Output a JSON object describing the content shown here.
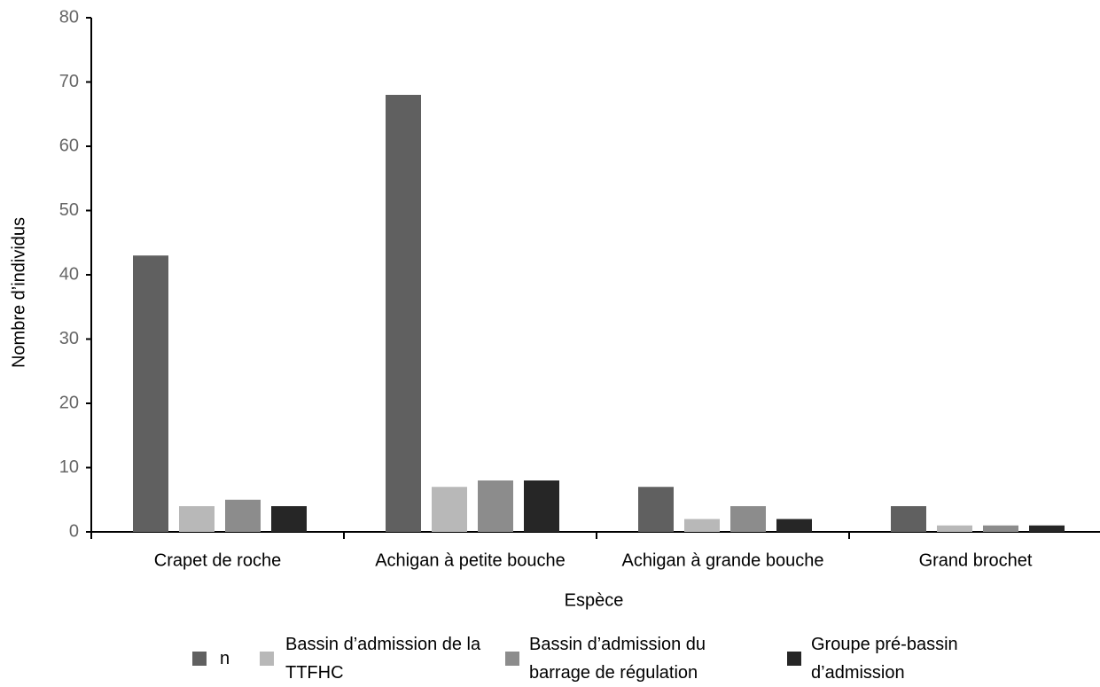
{
  "chart_data": {
    "type": "bar",
    "x_label": "Espèce",
    "y_label": "Nombre d’individus",
    "categories": [
      "Crapet de roche",
      "Achigan à petite bouche",
      "Achigan à grande bouche",
      "Grand brochet"
    ],
    "series": [
      {
        "name": "n",
        "color": "#606060",
        "values": [
          43,
          68,
          7,
          4
        ]
      },
      {
        "name": "Bassin d’admission de la TTFHC",
        "color": "#b8b8b8",
        "values": [
          4,
          7,
          2,
          1
        ]
      },
      {
        "name": "Bassin d’admission du barrage de régulation",
        "color": "#8c8c8c",
        "values": [
          5,
          8,
          4,
          1
        ]
      },
      {
        "name": "Groupe pré-bassin d’admission",
        "color": "#262626",
        "values": [
          4,
          8,
          2,
          1
        ]
      }
    ],
    "ylim": [
      0,
      80
    ],
    "yticks": [
      0,
      10,
      20,
      30,
      40,
      50,
      60,
      70,
      80
    ]
  }
}
